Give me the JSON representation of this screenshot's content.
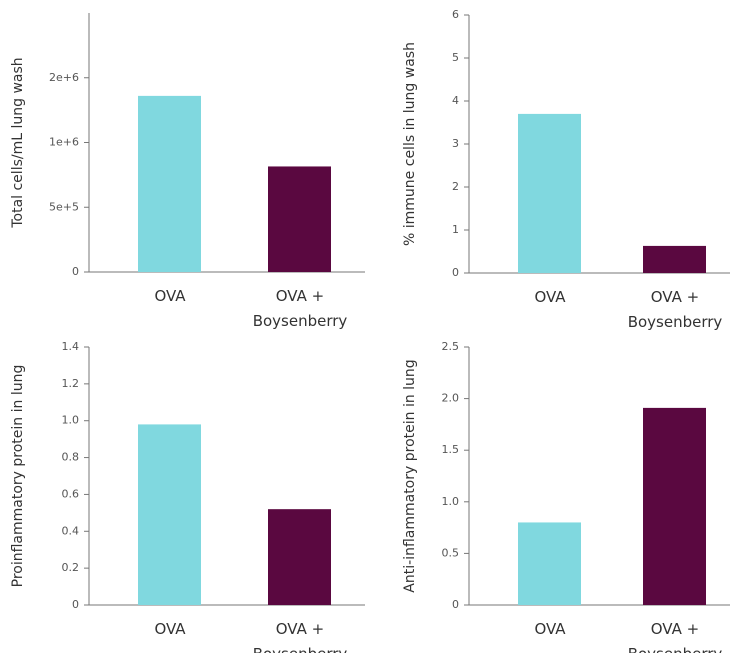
{
  "chart_data": [
    {
      "type": "bar",
      "y_label": "Total cells/mL lung wash",
      "categories": [
        "OVA",
        "OVA + Boysenberry"
      ],
      "values": [
        1360000,
        815000
      ],
      "colors": [
        "#80d8df",
        "#5a0840"
      ],
      "ylim": [
        0,
        2000000
      ],
      "yticks": [
        0,
        {
          "value": 500000,
          "label": "5e+5"
        },
        {
          "value": 1000000,
          "label": "1e+6"
        },
        {
          "value": 1500000,
          "label": "2e+6"
        }
      ]
    },
    {
      "type": "bar",
      "y_label": "% immune cells in lung wash",
      "categories": [
        "OVA",
        "OVA + Boysenberry"
      ],
      "values": [
        3.7,
        0.63
      ],
      "colors": [
        "#80d8df",
        "#5a0840"
      ],
      "ylim": [
        0,
        6
      ],
      "yticks": [
        0,
        1,
        2,
        3,
        4,
        5,
        6
      ]
    },
    {
      "type": "bar",
      "y_label": "Proinflammatory protein in lung",
      "categories": [
        "OVA",
        "OVA + Boysenberry"
      ],
      "values": [
        0.98,
        0.52
      ],
      "colors": [
        "#80d8df",
        "#5a0840"
      ],
      "ylim": [
        0,
        1.4
      ],
      "yticks": [
        0,
        0.2,
        0.4,
        0.6,
        0.8,
        {
          "value": 1,
          "label": "1.0"
        },
        1.2,
        1.4
      ]
    },
    {
      "type": "bar",
      "y_label": "Anti-inflammatory protein in lung",
      "categories": [
        "OVA",
        "OVA + Boysenberry"
      ],
      "values": [
        0.8,
        1.91
      ],
      "colors": [
        "#80d8df",
        "#5a0840"
      ],
      "ylim": [
        0,
        2.5
      ],
      "yticks": [
        0,
        0.5,
        {
          "value": 1,
          "label": "1.0"
        },
        1.5,
        {
          "value": 2,
          "label": "2.0"
        },
        2.5
      ]
    }
  ]
}
